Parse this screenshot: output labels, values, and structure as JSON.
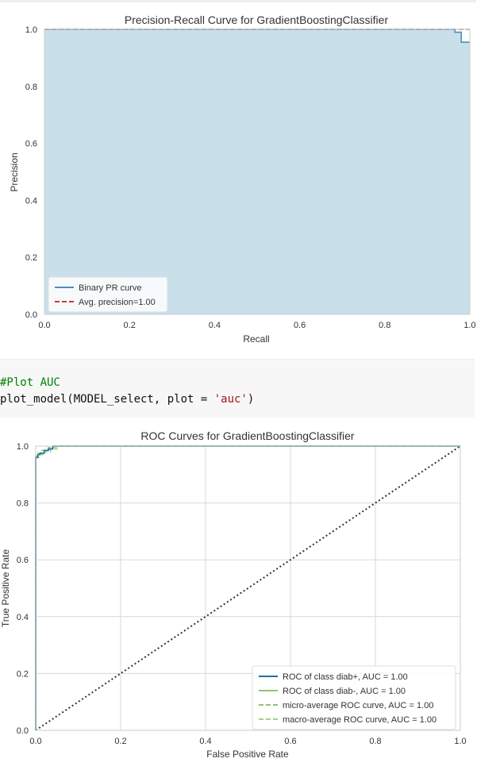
{
  "code_cell": {
    "line1": "#Plot AUC",
    "line2_prefix": "plot_model(MODEL_select, plot = ",
    "line2_string": "'auc'",
    "line2_suffix": ")"
  },
  "chart_data": [
    {
      "type": "line",
      "title": "Precision-Recall Curve for GradientBoostingClassifier",
      "xlabel": "Recall",
      "ylabel": "Precision",
      "xlim": [
        0.0,
        1.0
      ],
      "ylim": [
        0.0,
        1.0
      ],
      "xticks": [
        "0.0",
        "0.2",
        "0.4",
        "0.6",
        "0.8",
        "1.0"
      ],
      "yticks": [
        "0.0",
        "0.2",
        "0.4",
        "0.6",
        "0.8",
        "1.0"
      ],
      "grid": false,
      "legend_position": "lower-left",
      "fill_under_curve": true,
      "series": [
        {
          "name": "Binary PR curve",
          "color": "#4c8fc0",
          "fill_color": "#c9dfea",
          "x": [
            0.0,
            0.965,
            0.965,
            0.98,
            0.98,
            1.0
          ],
          "y": [
            1.0,
            1.0,
            0.99,
            0.99,
            0.955,
            0.955
          ]
        },
        {
          "name": "Avg. precision=1.00",
          "color": "#c53a32",
          "style": "dashed",
          "x": [
            0.0,
            1.0
          ],
          "y": [
            1.0,
            1.0
          ]
        }
      ]
    },
    {
      "type": "line",
      "title": "ROC Curves for GradientBoostingClassifier",
      "xlabel": "False Positive Rate",
      "ylabel": "True Positive Rate",
      "xlim": [
        0.0,
        1.0
      ],
      "ylim": [
        0.0,
        1.0
      ],
      "xticks": [
        "0.0",
        "0.2",
        "0.4",
        "0.6",
        "0.8",
        "1.0"
      ],
      "yticks": [
        "0.0",
        "0.2",
        "0.4",
        "0.6",
        "0.8",
        "1.0"
      ],
      "grid": true,
      "legend_position": "lower-right",
      "series": [
        {
          "name": "ROC of class diab+, AUC = 1.00",
          "color": "#1f6fa8",
          "style": "solid",
          "x": [
            0.0,
            0.0,
            0.005,
            0.005,
            0.01,
            0.01,
            0.02,
            0.02,
            0.03,
            0.03,
            0.04,
            0.04,
            1.0
          ],
          "y": [
            0.0,
            0.96,
            0.96,
            0.97,
            0.97,
            0.975,
            0.975,
            0.985,
            0.985,
            0.99,
            0.99,
            1.0,
            1.0
          ]
        },
        {
          "name": "ROC of class diab-, AUC = 1.00",
          "color": "#8fc56a",
          "style": "solid",
          "x": [
            0.0,
            0.0,
            0.005,
            0.005,
            0.01,
            0.01,
            0.02,
            0.02,
            0.03,
            0.03,
            0.04,
            0.04,
            1.0
          ],
          "y": [
            0.0,
            0.96,
            0.96,
            0.97,
            0.97,
            0.975,
            0.975,
            0.985,
            0.985,
            0.99,
            0.99,
            1.0,
            1.0
          ]
        },
        {
          "name": "micro-average ROC curve, AUC = 1.00",
          "color": "#8fc56a",
          "style": "dashed",
          "x": [
            0.0,
            0.0,
            0.005,
            0.005,
            0.015,
            0.015,
            0.03,
            0.03,
            0.045,
            0.045,
            1.0
          ],
          "y": [
            0.0,
            0.965,
            0.965,
            0.975,
            0.975,
            0.985,
            0.985,
            0.995,
            0.995,
            1.0,
            1.0
          ]
        },
        {
          "name": "macro-average ROC curve, AUC = 1.00",
          "color": "#a8d08a",
          "style": "dashed",
          "x": [
            0.0,
            0.0,
            0.008,
            0.008,
            0.02,
            0.02,
            0.035,
            0.035,
            0.05,
            0.05,
            1.0
          ],
          "y": [
            0.0,
            0.96,
            0.96,
            0.97,
            0.97,
            0.98,
            0.98,
            0.99,
            0.99,
            1.0,
            1.0
          ]
        }
      ],
      "reference_line": {
        "color": "#333333",
        "style": "dotted",
        "x": [
          0.0,
          1.0
        ],
        "y": [
          0.0,
          1.0
        ]
      }
    }
  ]
}
